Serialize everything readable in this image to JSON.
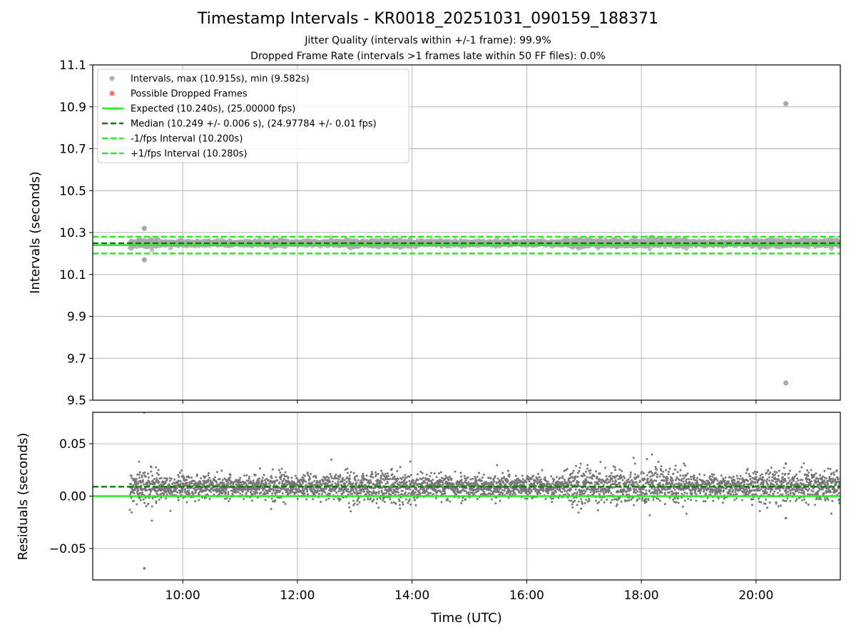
{
  "chart_data": [
    {
      "type": "scatter",
      "panel": "intervals",
      "title": "Timestamp Intervals - KR0018_20251031_090159_188371",
      "subtitle_lines": [
        "Jitter Quality (intervals within +/-1 frame): 99.9%",
        "Dropped Frame Rate (intervals >1 frames late within 50 FF files): 0.0%"
      ],
      "xlabel": "",
      "ylabel": "Intervals (seconds)",
      "xlim_hours": [
        8.43,
        21.47
      ],
      "ylim": [
        9.5,
        11.1
      ],
      "yticks": [
        9.5,
        9.7,
        9.9,
        10.1,
        10.3,
        10.5,
        10.7,
        10.9,
        11.1
      ],
      "ytick_labels": [
        "9.5",
        "9.7",
        "9.9",
        "10.1",
        "10.3",
        "10.5",
        "10.7",
        "10.9",
        "11.1"
      ],
      "grid": true,
      "legend_position": "top-left",
      "legend": [
        {
          "label": "Intervals, max (10.915s), min (9.582s)",
          "kind": "dot",
          "color": "#aaaaaa"
        },
        {
          "label": "Possible Dropped Frames",
          "kind": "dot",
          "color": "#ff6666"
        },
        {
          "label": "Expected (10.240s), (25.00000 fps)",
          "kind": "line",
          "color": "#22ee22",
          "dash": false
        },
        {
          "label": "Median (10.249 +/- 0.006 s), (24.97784 +/- 0.01 fps)",
          "kind": "line",
          "color": "#117711",
          "dash": true
        },
        {
          "label": "-1/fps Interval (10.200s)",
          "kind": "line",
          "color": "#22ee22",
          "dash": true
        },
        {
          "label": "+1/fps Interval (10.280s)",
          "kind": "line",
          "color": "#22ee22",
          "dash": true
        }
      ],
      "reference_lines": [
        {
          "name": "expected",
          "y": 10.24,
          "color": "#22ee22",
          "dash": false
        },
        {
          "name": "median",
          "y": 10.249,
          "color": "#117711",
          "dash": true
        },
        {
          "name": "minus_1fps",
          "y": 10.2,
          "color": "#22ee22",
          "dash": true
        },
        {
          "name": "plus_1fps",
          "y": 10.28,
          "color": "#22ee22",
          "dash": true
        }
      ],
      "data_span_hours": [
        9.08,
        21.47
      ],
      "band_center": 10.249,
      "band_halfwidth": 0.012,
      "outliers": [
        {
          "t_hours": 9.33,
          "y": 10.32
        },
        {
          "t_hours": 9.33,
          "y": 10.17
        },
        {
          "t_hours": 20.52,
          "y": 10.915
        },
        {
          "t_hours": 20.52,
          "y": 9.582
        }
      ],
      "point_color": "#aaaaaa"
    },
    {
      "type": "scatter",
      "panel": "residuals",
      "xlabel": "Time (UTC)",
      "ylabel": "Residuals (seconds)",
      "xlim_hours": [
        8.43,
        21.47
      ],
      "ylim": [
        -0.08,
        0.08
      ],
      "yticks": [
        -0.05,
        0.0,
        0.05
      ],
      "ytick_labels": [
        "−0.05",
        "0.00",
        "0.05"
      ],
      "xticks_hours": [
        10,
        12,
        14,
        16,
        18,
        20
      ],
      "xtick_labels": [
        "10:00",
        "12:00",
        "14:00",
        "16:00",
        "18:00",
        "20:00"
      ],
      "grid": true,
      "reference_lines": [
        {
          "name": "expected",
          "y": 0.0,
          "color": "#22ee22",
          "dash": false
        },
        {
          "name": "median",
          "y": 0.009,
          "color": "#117711",
          "dash": true
        }
      ],
      "data_span_hours": [
        9.08,
        21.47
      ],
      "outliers": [
        {
          "t_hours": 9.33,
          "y": 0.08
        },
        {
          "t_hours": 9.33,
          "y": -0.069
        },
        {
          "t_hours": 20.52,
          "y": 0.031
        },
        {
          "t_hours": 20.52,
          "y": -0.021
        }
      ],
      "point_color": "#777777"
    }
  ]
}
